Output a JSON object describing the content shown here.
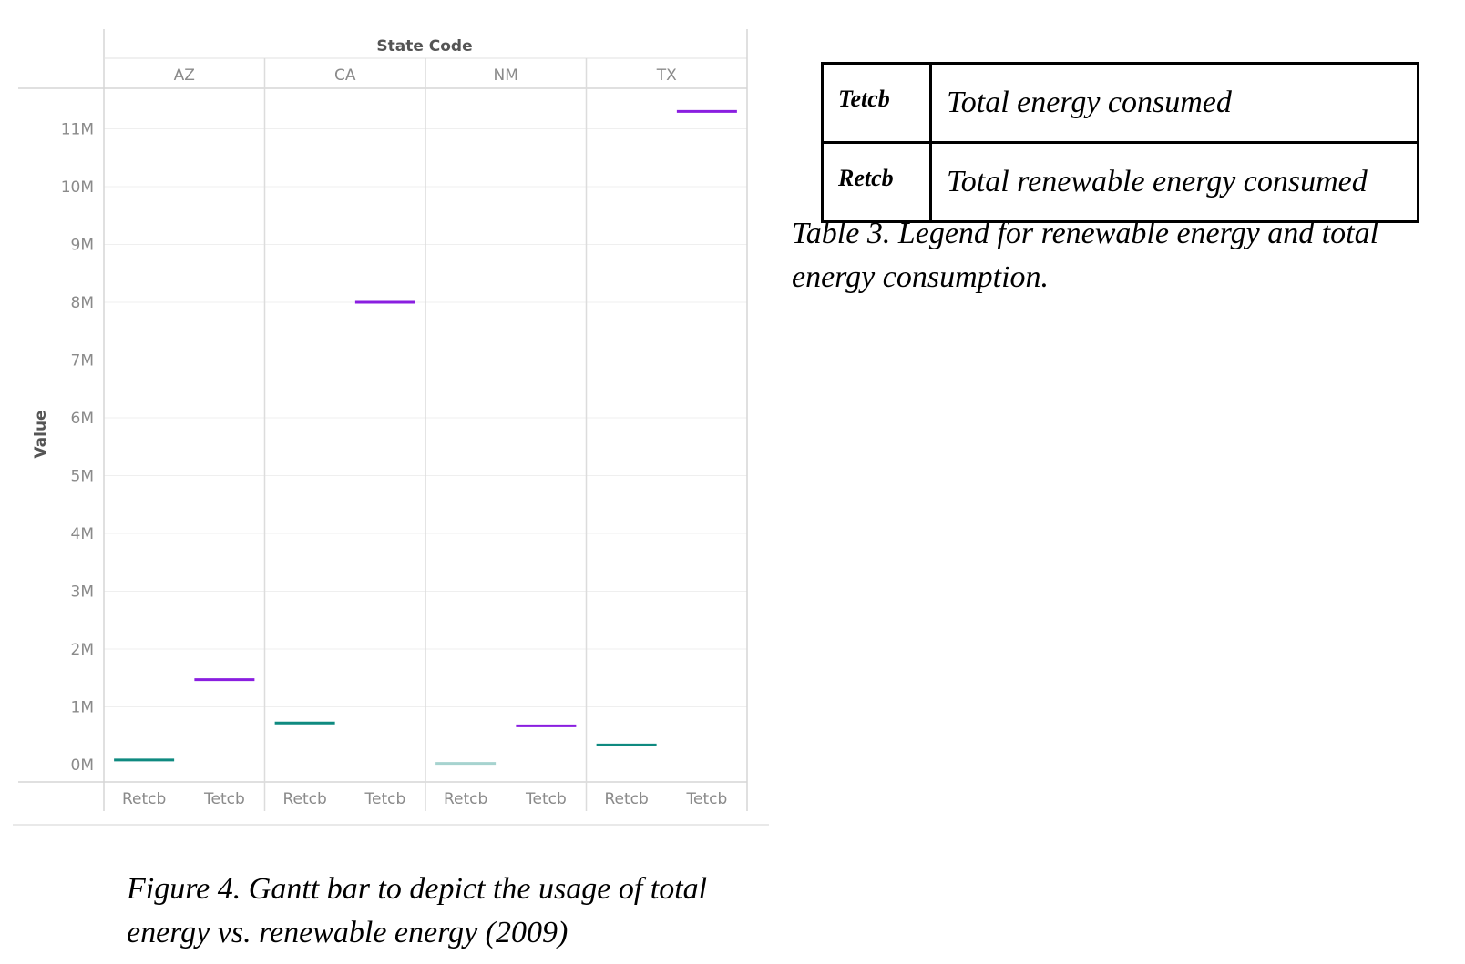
{
  "chart_data": {
    "type": "gantt",
    "title": "State Code",
    "ylabel": "Value",
    "ylim": [
      -0.3,
      11.7
    ],
    "y_unit": "M",
    "y_ticks": [
      "0M",
      "1M",
      "2M",
      "3M",
      "4M",
      "5M",
      "6M",
      "7M",
      "8M",
      "9M",
      "10M",
      "11M"
    ],
    "panels": [
      "AZ",
      "CA",
      "NM",
      "TX"
    ],
    "categories": [
      "Retcb",
      "Tetcb"
    ],
    "values": [
      {
        "state": "AZ",
        "category": "Retcb",
        "value": 0.08
      },
      {
        "state": "AZ",
        "category": "Tetcb",
        "value": 1.47
      },
      {
        "state": "CA",
        "category": "Retcb",
        "value": 0.72
      },
      {
        "state": "CA",
        "category": "Tetcb",
        "value": 8.0
      },
      {
        "state": "NM",
        "category": "Retcb",
        "value": 0.02
      },
      {
        "state": "NM",
        "category": "Tetcb",
        "value": 0.67
      },
      {
        "state": "TX",
        "category": "Retcb",
        "value": 0.34
      },
      {
        "state": "TX",
        "category": "Tetcb",
        "value": 11.3
      }
    ],
    "colors": {
      "Retcb": "#0f8a80",
      "Tetcb": "#8a1ee0",
      "Retcb_light": "#a6d3cf"
    }
  },
  "legend_table": {
    "rows": [
      {
        "code": "Tetcb",
        "description": "Total energy consumed"
      },
      {
        "code": "Retcb",
        "description": "Total renewable energy consumed"
      }
    ],
    "caption": "Table 3. Legend for renewable energy and total energy consumption."
  },
  "figure_caption": "Figure 4. Gantt bar to depict the usage of total energy vs. renewable energy (2009)"
}
